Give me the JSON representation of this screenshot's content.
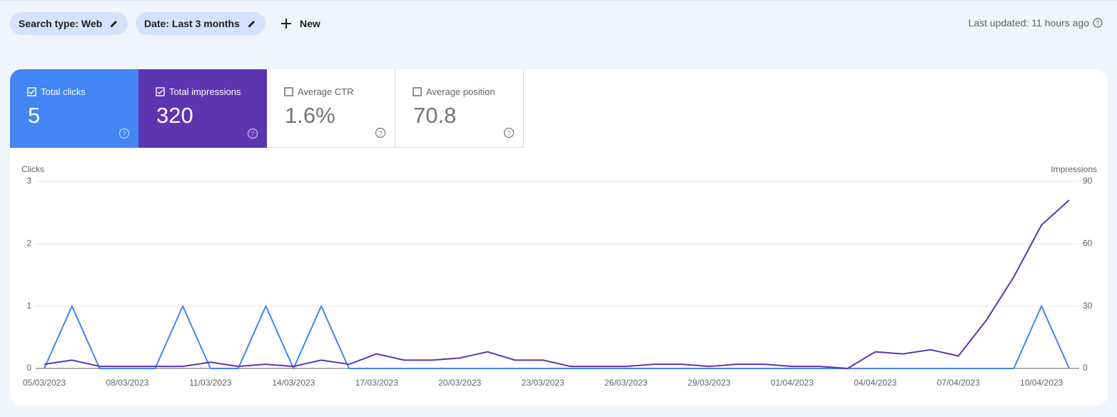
{
  "toolbar": {
    "filters": [
      "Search type: Web",
      "Date: Last 3 months"
    ],
    "new_button": "New",
    "last_updated": "Last updated: 11 hours ago"
  },
  "metrics": [
    {
      "label": "Total clicks",
      "value": "5"
    },
    {
      "label": "Total impressions",
      "value": "320"
    },
    {
      "label": "Average CTR",
      "value": "1.6%"
    },
    {
      "label": "Average position",
      "value": "70.8"
    }
  ],
  "chart_data": {
    "type": "line",
    "ylabel": "Clicks",
    "y2label": "Impressions",
    "categories": [
      "05/03/2023",
      null,
      null,
      "08/03/2023",
      null,
      null,
      "11/03/2023",
      null,
      null,
      "14/03/2023",
      null,
      null,
      "17/03/2023",
      null,
      null,
      "20/03/2023",
      null,
      null,
      "23/03/2023",
      null,
      null,
      "26/03/2023",
      null,
      null,
      "29/03/2023",
      null,
      null,
      "01/04/2023",
      null,
      null,
      "04/04/2023",
      null,
      null,
      "07/04/2023",
      null,
      null,
      "10/04/2023",
      null
    ],
    "series": [
      {
        "color": "#4285f4",
        "values": [
          0,
          1,
          0,
          0,
          0,
          1,
          0,
          0,
          1,
          0,
          1,
          0,
          0,
          0,
          0,
          0,
          0,
          0,
          0,
          0,
          0,
          0,
          0,
          0,
          0,
          0,
          0,
          0,
          0,
          0,
          0,
          0,
          0,
          0,
          0,
          0,
          1,
          0
        ]
      },
      {
        "color": "#5e35b1",
        "axis": "y2",
        "values": [
          2,
          4,
          1,
          1,
          1,
          1,
          3,
          1,
          2,
          1,
          4,
          2,
          7,
          4,
          4,
          5,
          8,
          4,
          4,
          1,
          1,
          1,
          2,
          2,
          1,
          2,
          2,
          1,
          1,
          0,
          8,
          7,
          9,
          6,
          23,
          44,
          69,
          81
        ]
      }
    ],
    "ylim": [
      0,
      3
    ],
    "yticks": [
      0,
      1,
      2,
      3
    ],
    "y2lim": [
      0,
      90
    ],
    "y2ticks": [
      0,
      30,
      60,
      90
    ],
    "grid": true
  }
}
